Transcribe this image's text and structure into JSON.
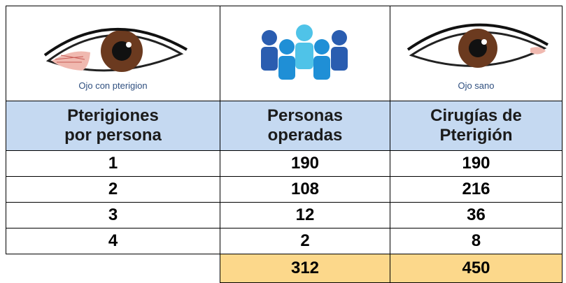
{
  "header": {
    "image_captions": [
      "Ojo con pterigion",
      "Ojo sano"
    ]
  },
  "table": {
    "columns": [
      "Pterigiones\npor persona",
      "Personas\noperadas",
      "Cirugías de\nPterigión"
    ],
    "rows": [
      [
        1,
        190,
        190
      ],
      [
        2,
        108,
        216
      ],
      [
        3,
        12,
        36
      ],
      [
        4,
        2,
        8
      ]
    ],
    "totals": [
      312,
      450
    ]
  }
}
